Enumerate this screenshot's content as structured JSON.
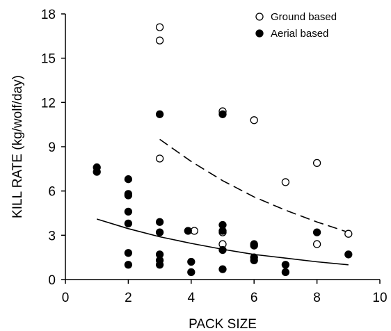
{
  "chart_data": {
    "type": "scatter",
    "xlabel": "PACK SIZE",
    "ylabel": "KILL RATE (kg/wolf/day)",
    "xlim": [
      0,
      10
    ],
    "ylim": [
      0,
      18
    ],
    "xticks": [
      0,
      2,
      4,
      6,
      8,
      10
    ],
    "yticks": [
      0,
      3,
      6,
      9,
      12,
      15,
      18
    ],
    "grid": false,
    "legend_position": "top-right",
    "series": [
      {
        "name": "Ground based",
        "marker": "open-circle",
        "color": "#000000",
        "points": [
          [
            3,
            17.1
          ],
          [
            3,
            16.2
          ],
          [
            3,
            8.2
          ],
          [
            4.1,
            3.3
          ],
          [
            5,
            11.4
          ],
          [
            5,
            3.2
          ],
          [
            5,
            2.4
          ],
          [
            6,
            10.8
          ],
          [
            7,
            6.6
          ],
          [
            8,
            7.9
          ],
          [
            8,
            2.4
          ],
          [
            9,
            3.1
          ]
        ]
      },
      {
        "name": "Aerial based",
        "marker": "filled-circle",
        "color": "#000000",
        "points": [
          [
            1,
            7.6
          ],
          [
            1,
            7.3
          ],
          [
            2,
            6.8
          ],
          [
            2,
            5.8
          ],
          [
            2,
            5.7
          ],
          [
            2,
            4.6
          ],
          [
            2,
            3.8
          ],
          [
            2,
            1.8
          ],
          [
            2,
            1.0
          ],
          [
            3,
            11.2
          ],
          [
            3,
            3.9
          ],
          [
            3,
            3.2
          ],
          [
            3,
            1.7
          ],
          [
            3,
            1.3
          ],
          [
            3,
            1.0
          ],
          [
            3.9,
            3.3
          ],
          [
            4,
            1.2
          ],
          [
            4,
            0.5
          ],
          [
            5,
            11.2
          ],
          [
            5,
            3.7
          ],
          [
            5,
            3.3
          ],
          [
            5,
            2.0
          ],
          [
            5,
            0.7
          ],
          [
            6,
            2.4
          ],
          [
            6,
            2.3
          ],
          [
            6,
            1.5
          ],
          [
            6,
            1.3
          ],
          [
            7,
            1.0
          ],
          [
            7,
            0.5
          ],
          [
            8,
            3.2
          ],
          [
            9,
            1.7
          ]
        ]
      }
    ],
    "fit_lines": [
      {
        "series": "Ground based",
        "style": "dashed",
        "points": [
          [
            3,
            9.5
          ],
          [
            4,
            8.0
          ],
          [
            5,
            6.7
          ],
          [
            6,
            5.6
          ],
          [
            7,
            4.7
          ],
          [
            8,
            3.9
          ],
          [
            9,
            3.2
          ]
        ]
      },
      {
        "series": "Aerial based",
        "style": "solid",
        "points": [
          [
            1,
            4.1
          ],
          [
            2,
            3.45
          ],
          [
            3,
            2.9
          ],
          [
            4,
            2.45
          ],
          [
            5,
            2.05
          ],
          [
            6,
            1.7
          ],
          [
            7,
            1.45
          ],
          [
            8,
            1.2
          ],
          [
            9,
            1.0
          ]
        ]
      }
    ]
  }
}
